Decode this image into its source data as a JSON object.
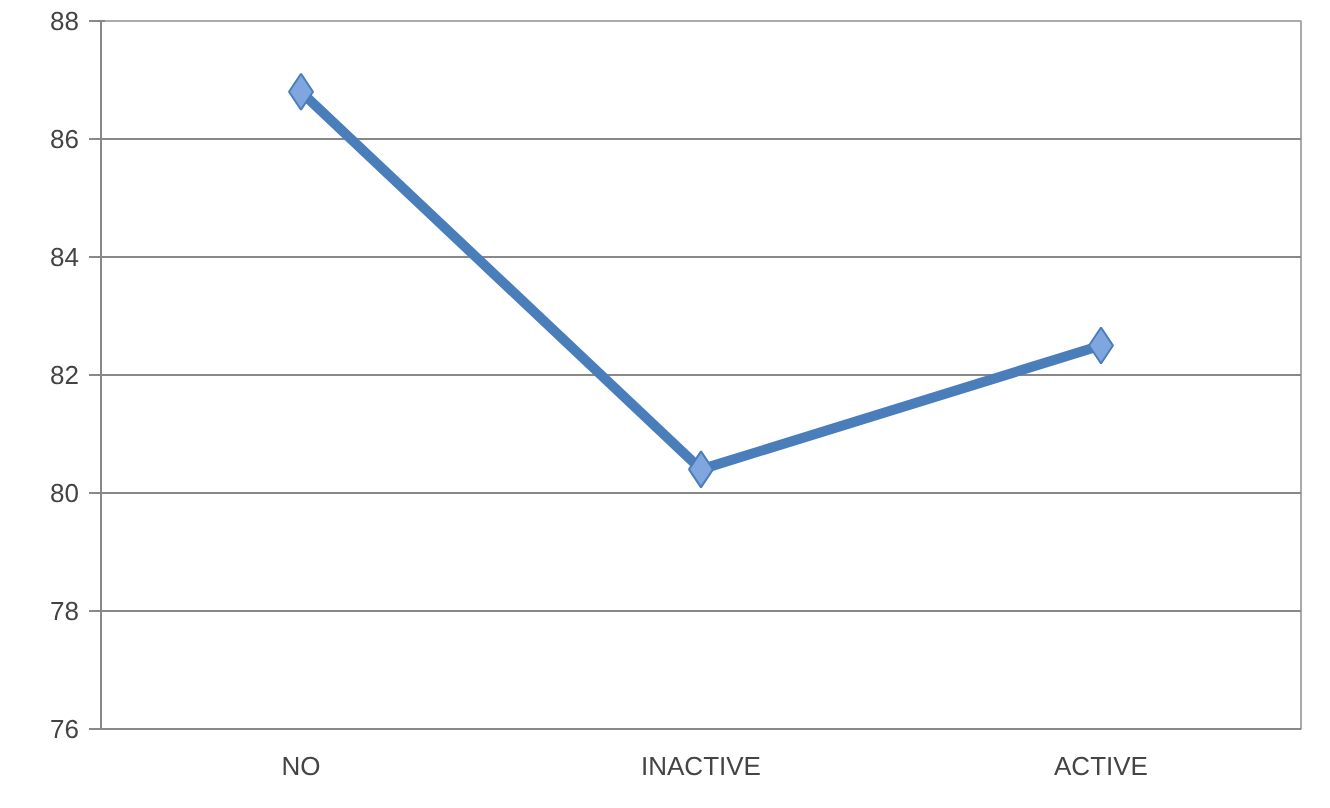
{
  "chart_data": {
    "type": "line",
    "categories": [
      "NO",
      "INACTIVE",
      "ACTIVE"
    ],
    "series": [
      {
        "color": "#4a7ebb",
        "values": [
          86.8,
          80.4,
          82.5
        ]
      }
    ],
    "ylim": [
      76,
      88
    ],
    "yticks": [
      76,
      78,
      80,
      82,
      84,
      86,
      88
    ],
    "grid": "y",
    "marker": "diamond",
    "line_style": "solid"
  }
}
